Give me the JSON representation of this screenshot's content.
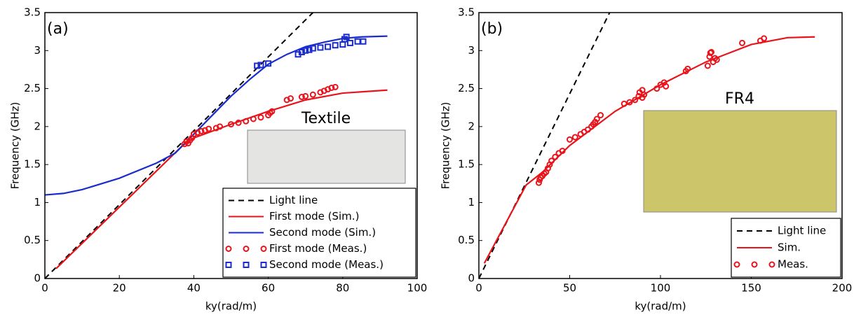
{
  "chart_data": [
    {
      "type": "line",
      "panel_label": "(a)",
      "xlabel": "ky(rad/m)",
      "ylabel": "Frequency (GHz)",
      "annotation": "Textile",
      "legend": "lower right",
      "xlim": [
        0,
        100
      ],
      "xticks": [
        0,
        20,
        40,
        60,
        80,
        100
      ],
      "ylim": [
        0,
        3.5
      ],
      "yticks": [
        0,
        0.5,
        1,
        1.5,
        2,
        2.5,
        3,
        3.5
      ],
      "series": [
        {
          "name": "Light line",
          "color": "#000000",
          "style": "dashed",
          "x": [
            0,
            72
          ],
          "values": [
            0,
            3.5
          ]
        },
        {
          "name": "First mode (Sim.)",
          "color": "#e8141b",
          "style": "solid",
          "x": [
            3,
            37,
            40,
            50,
            60,
            70,
            80,
            92
          ],
          "values": [
            0.13,
            1.75,
            1.85,
            2.03,
            2.2,
            2.35,
            2.44,
            2.48
          ]
        },
        {
          "name": "Second mode (Sim.)",
          "color": "#1a2ccc",
          "style": "solid",
          "x": [
            0,
            5,
            10,
            20,
            30,
            35,
            40,
            45,
            50,
            55,
            60,
            65,
            70,
            75,
            80,
            85,
            92
          ],
          "values": [
            1.1,
            1.12,
            1.17,
            1.32,
            1.52,
            1.65,
            1.9,
            2.15,
            2.4,
            2.62,
            2.82,
            2.95,
            3.05,
            3.11,
            3.16,
            3.18,
            3.19
          ]
        },
        {
          "name": "First mode (Meas.)",
          "color": "#e8141b",
          "style": "markers",
          "marker": "circle",
          "x": [
            37.5,
            38,
            38.5,
            39,
            39.5,
            40,
            41,
            42,
            43,
            44,
            46,
            47,
            50,
            52,
            54,
            56,
            58,
            60,
            60.5,
            61,
            65,
            66,
            69,
            70,
            72,
            74,
            75,
            76,
            77,
            78
          ],
          "values": [
            1.77,
            1.8,
            1.78,
            1.82,
            1.85,
            1.9,
            1.92,
            1.94,
            1.95,
            1.97,
            1.98,
            2.0,
            2.03,
            2.05,
            2.07,
            2.1,
            2.12,
            2.15,
            2.18,
            2.2,
            2.35,
            2.37,
            2.39,
            2.4,
            2.42,
            2.45,
            2.47,
            2.49,
            2.51,
            2.52
          ]
        },
        {
          "name": "Second mode (Meas.)",
          "color": "#1a2ccc",
          "style": "markers",
          "marker": "square",
          "x": [
            57,
            58,
            60,
            68,
            69,
            70,
            71,
            72,
            74,
            76,
            78,
            80,
            80.5,
            81,
            82,
            84,
            85.5
          ],
          "values": [
            2.8,
            2.81,
            2.83,
            2.95,
            2.98,
            3.0,
            3.01,
            3.03,
            3.04,
            3.05,
            3.07,
            3.08,
            3.15,
            3.18,
            3.1,
            3.12,
            3.12
          ]
        }
      ]
    },
    {
      "type": "line",
      "panel_label": "(b)",
      "xlabel": "ky(rad/m)",
      "ylabel": "Frequency (GHz)",
      "annotation": "FR4",
      "legend": "lower right",
      "xlim": [
        0,
        200
      ],
      "xticks": [
        0,
        50,
        100,
        150,
        200
      ],
      "ylim": [
        0,
        3.5
      ],
      "yticks": [
        0,
        0.5,
        1,
        1.5,
        2,
        2.5,
        3,
        3.5
      ],
      "series": [
        {
          "name": "Light line",
          "color": "#000000",
          "style": "dashed",
          "x": [
            0,
            72
          ],
          "values": [
            0,
            3.5
          ]
        },
        {
          "name": "Sim.",
          "color": "#e8141b",
          "style": "solid",
          "x": [
            3,
            26,
            35,
            50,
            75,
            100,
            125,
            150,
            170,
            185
          ],
          "values": [
            0.2,
            1.23,
            1.4,
            1.75,
            2.2,
            2.55,
            2.85,
            3.08,
            3.17,
            3.18
          ]
        },
        {
          "name": "Meas.",
          "color": "#e8141b",
          "style": "markers",
          "marker": "circle",
          "x": [
            33,
            33.5,
            34,
            35,
            36,
            37,
            38,
            39,
            40,
            42,
            44,
            46,
            50,
            53,
            56,
            58,
            60,
            62,
            63,
            64,
            65,
            67,
            80,
            83,
            86,
            88,
            88.5,
            90,
            90,
            91,
            98,
            100,
            102,
            103,
            114,
            115,
            126,
            127,
            127.5,
            128,
            129,
            130,
            131,
            145,
            155,
            157
          ],
          "values": [
            1.26,
            1.3,
            1.33,
            1.35,
            1.38,
            1.4,
            1.45,
            1.5,
            1.55,
            1.6,
            1.65,
            1.68,
            1.83,
            1.86,
            1.9,
            1.93,
            1.96,
            2.0,
            2.03,
            2.06,
            2.1,
            2.15,
            2.3,
            2.32,
            2.35,
            2.4,
            2.45,
            2.48,
            2.38,
            2.42,
            2.5,
            2.55,
            2.58,
            2.53,
            2.73,
            2.76,
            2.8,
            2.92,
            2.97,
            2.98,
            2.85,
            2.9,
            2.88,
            3.1,
            3.13,
            3.16
          ]
        }
      ]
    }
  ]
}
